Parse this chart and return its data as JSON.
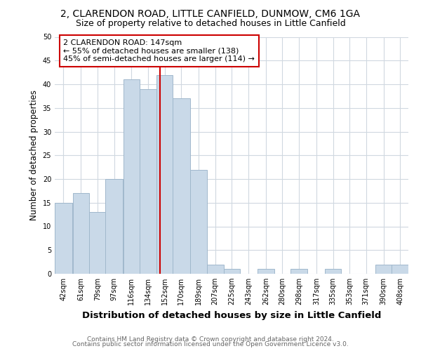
{
  "title1": "2, CLARENDON ROAD, LITTLE CANFIELD, DUNMOW, CM6 1GA",
  "title2": "Size of property relative to detached houses in Little Canfield",
  "xlabel": "Distribution of detached houses by size in Little Canfield",
  "ylabel": "Number of detached properties",
  "bin_labels": [
    "42sqm",
    "61sqm",
    "79sqm",
    "97sqm",
    "116sqm",
    "134sqm",
    "152sqm",
    "170sqm",
    "189sqm",
    "207sqm",
    "225sqm",
    "243sqm",
    "262sqm",
    "280sqm",
    "298sqm",
    "317sqm",
    "335sqm",
    "353sqm",
    "371sqm",
    "390sqm",
    "408sqm"
  ],
  "bar_heights": [
    15,
    17,
    13,
    20,
    41,
    39,
    42,
    37,
    22,
    2,
    1,
    0,
    1,
    0,
    1,
    0,
    1,
    0,
    0,
    2,
    2
  ],
  "bar_color": "#c9d9e8",
  "bar_edge_color": "#a0b8cc",
  "vline_x": 147,
  "vline_color": "#cc0000",
  "annotation_text": "2 CLARENDON ROAD: 147sqm\n← 55% of detached houses are smaller (138)\n45% of semi-detached houses are larger (114) →",
  "annotation_box_color": "#cc0000",
  "annotation_bg": "#ffffff",
  "footer1": "Contains HM Land Registry data © Crown copyright and database right 2024.",
  "footer2": "Contains public sector information licensed under the Open Government Licence v3.0.",
  "ylim": [
    0,
    50
  ],
  "yticks": [
    0,
    5,
    10,
    15,
    20,
    25,
    30,
    35,
    40,
    45,
    50
  ],
  "grid_color": "#d0d8e0",
  "background_color": "#ffffff",
  "title1_fontsize": 10,
  "title2_fontsize": 9,
  "xlabel_fontsize": 9.5,
  "ylabel_fontsize": 8.5,
  "tick_fontsize": 7,
  "footer_fontsize": 6.5,
  "annotation_fontsize": 8
}
